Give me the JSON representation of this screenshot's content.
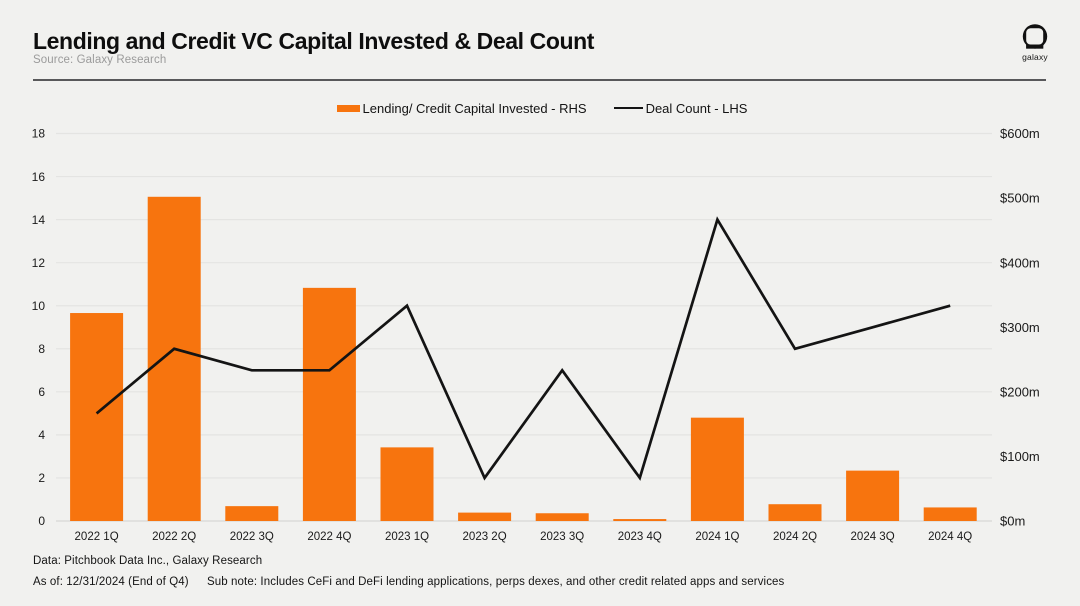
{
  "header": {
    "title": "Lending and Credit VC Capital Invested & Deal Count",
    "source": "Source: Galaxy Research",
    "logo_text": "galaxy"
  },
  "legend": {
    "bars_label": "Lending/ Credit Capital Invested - RHS",
    "line_label": "Deal Count - LHS"
  },
  "footer": {
    "data_note": "Data: Pitchbook Data Inc., Galaxy Research",
    "as_of": "As of: 12/31/2024 (End of Q4)",
    "sub_note": "Sub note: Includes CeFi and DeFi lending applications, perps dexes, and other credit related apps and services"
  },
  "colors": {
    "background": "#f1f1ef",
    "bar_orange": "#f7740e",
    "line_black": "#141414",
    "gridline": "#e4e4e2",
    "baseline": "#dcdcda",
    "tick_text": "#1a1a1a"
  },
  "chart_data": {
    "type": "bar+line",
    "title": "Lending and Credit VC Capital Invested & Deal Count",
    "categories": [
      "2022 1Q",
      "2022 2Q",
      "2022 3Q",
      "2022 4Q",
      "2023 1Q",
      "2023 2Q",
      "2023 3Q",
      "2023 4Q",
      "2024 1Q",
      "2024 2Q",
      "2024 3Q",
      "2024 4Q"
    ],
    "series": [
      {
        "name": "Lending/ Credit Capital Invested - RHS",
        "type": "bar",
        "axis": "right",
        "unit": "$m",
        "values": [
          322,
          502,
          23,
          361,
          114,
          13,
          12,
          3,
          160,
          26,
          78,
          21
        ]
      },
      {
        "name": "Deal Count - LHS",
        "type": "line",
        "axis": "left",
        "unit": "deals",
        "values": [
          5,
          8,
          7,
          7,
          10,
          2,
          7,
          2,
          14,
          8,
          9,
          10
        ]
      }
    ],
    "left_axis": {
      "min": 0,
      "max": 18,
      "step": 2,
      "ticks": [
        "0",
        "2",
        "4",
        "6",
        "8",
        "10",
        "12",
        "14",
        "16",
        "18"
      ]
    },
    "right_axis": {
      "min": 0,
      "max": 600,
      "step": 100,
      "ticks": [
        "$0m",
        "$100m",
        "$200m",
        "$300m",
        "$400m",
        "$500m",
        "$600m"
      ]
    },
    "grid": "horizontal",
    "legend_position": "top-center"
  }
}
